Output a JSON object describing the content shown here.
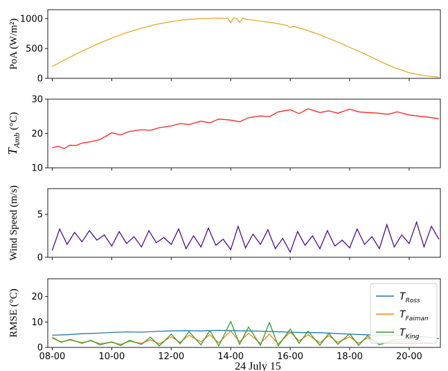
{
  "chart_data": [
    {
      "type": "line",
      "ylabel": "PoA (W/m²)",
      "ylim": [
        0,
        1150
      ],
      "yticks": [
        "0",
        "500",
        "1000"
      ],
      "ytick_values": [
        0,
        500,
        1000
      ],
      "xlim": [
        7.85,
        21.05
      ],
      "series": [
        {
          "color": "#e2a829",
          "x": [
            8.0,
            8.5,
            9.0,
            9.5,
            10.0,
            10.5,
            11.0,
            11.5,
            12.0,
            12.5,
            13.0,
            13.5,
            13.9,
            14.0,
            14.1,
            14.2,
            14.3,
            14.4,
            14.5,
            15.0,
            15.5,
            15.9,
            16.0,
            16.1,
            16.5,
            17.0,
            17.5,
            18.0,
            18.5,
            19.0,
            19.5,
            20.0,
            20.5,
            21.0
          ],
          "values": [
            200,
            330,
            455,
            570,
            675,
            765,
            840,
            905,
            950,
            985,
            1000,
            1010,
            1005,
            930,
            1015,
            1000,
            940,
            1010,
            990,
            960,
            925,
            885,
            850,
            875,
            815,
            730,
            630,
            520,
            410,
            290,
            180,
            95,
            45,
            20
          ]
        }
      ]
    },
    {
      "type": "line",
      "ylabel": "T_Amb (°C)",
      "ylabel_main": "T",
      "ylabel_sub": "Amb",
      "ylabel_tail": " (°C)",
      "ylim": [
        10,
        30
      ],
      "yticks": [
        "10",
        "20",
        "30"
      ],
      "ytick_values": [
        10,
        20,
        30
      ],
      "xlim": [
        7.85,
        21.05
      ],
      "series": [
        {
          "color": "#ff2020",
          "x": [
            8.0,
            8.2,
            8.4,
            8.6,
            8.8,
            9.0,
            9.3,
            9.6,
            10.0,
            10.3,
            10.6,
            11.0,
            11.3,
            11.6,
            12.0,
            12.3,
            12.6,
            13.0,
            13.3,
            13.6,
            14.0,
            14.3,
            14.6,
            15.0,
            15.3,
            15.6,
            16.0,
            16.3,
            16.6,
            17.0,
            17.3,
            17.6,
            18.0,
            18.3,
            18.6,
            19.0,
            19.3,
            19.6,
            20.0,
            20.3,
            20.6,
            21.0
          ],
          "values": [
            15.8,
            16.3,
            15.6,
            16.6,
            16.5,
            17.2,
            17.6,
            18.2,
            20.2,
            19.6,
            20.6,
            21.1,
            20.9,
            21.7,
            22.2,
            22.9,
            22.6,
            23.6,
            23.1,
            24.2,
            23.9,
            23.4,
            24.6,
            25.1,
            24.9,
            26.3,
            26.9,
            25.8,
            27.2,
            26.1,
            26.6,
            25.9,
            27.1,
            26.3,
            26.1,
            25.9,
            25.6,
            26.3,
            25.4,
            25.1,
            24.8,
            24.3
          ]
        }
      ]
    },
    {
      "type": "line",
      "ylabel": "Wind Speed (m/s)",
      "ylim": [
        0,
        8
      ],
      "yticks": [
        "0",
        "5"
      ],
      "ytick_values": [
        0,
        5
      ],
      "xlim": [
        7.85,
        21.05
      ],
      "series": [
        {
          "color": "#4b0c8f",
          "x": [
            8.0,
            8.25,
            8.5,
            8.75,
            9.0,
            9.25,
            9.5,
            9.75,
            10.0,
            10.25,
            10.5,
            10.75,
            11.0,
            11.25,
            11.5,
            11.75,
            12.0,
            12.25,
            12.5,
            12.75,
            13.0,
            13.25,
            13.5,
            13.75,
            14.0,
            14.25,
            14.5,
            14.75,
            15.0,
            15.25,
            15.5,
            15.75,
            16.0,
            16.25,
            16.5,
            16.75,
            17.0,
            17.25,
            17.5,
            17.75,
            18.0,
            18.25,
            18.5,
            18.75,
            19.0,
            19.25,
            19.5,
            19.75,
            20.0,
            20.25,
            20.5,
            20.75,
            21.0
          ],
          "values": [
            0.8,
            3.3,
            1.5,
            2.9,
            1.8,
            3.1,
            2.0,
            2.6,
            1.3,
            3.0,
            1.6,
            2.4,
            1.2,
            3.1,
            1.7,
            2.3,
            1.5,
            3.3,
            1.0,
            2.5,
            1.2,
            3.4,
            1.4,
            2.1,
            0.9,
            3.6,
            1.1,
            2.7,
            1.5,
            3.2,
            1.0,
            2.2,
            0.6,
            3.0,
            1.4,
            2.5,
            1.0,
            3.1,
            1.3,
            2.0,
            1.1,
            3.3,
            1.5,
            2.4,
            1.0,
            3.8,
            1.2,
            2.6,
            1.6,
            4.1,
            1.2,
            3.6,
            2.1
          ]
        }
      ]
    },
    {
      "type": "line",
      "ylabel": "RMSE (°C)",
      "ylim": [
        0,
        27
      ],
      "yticks": [
        "0",
        "10",
        "20"
      ],
      "ytick_values": [
        0,
        10,
        20
      ],
      "xlim": [
        7.85,
        21.05
      ],
      "xticks": [
        "08-00",
        "10-00",
        "12-00",
        "14-00",
        "16-00",
        "18-00",
        "20-00"
      ],
      "xtick_values": [
        8,
        10,
        12,
        14,
        16,
        18,
        20
      ],
      "xlabel": "24 July 15",
      "legend": "top-right",
      "series": [
        {
          "name": "T_Ross",
          "color": "#1f77b4",
          "x": [
            8.0,
            8.5,
            9.0,
            9.5,
            10.0,
            10.5,
            11.0,
            11.5,
            12.0,
            12.5,
            13.0,
            13.5,
            14.0,
            14.5,
            15.0,
            15.5,
            16.0,
            16.5,
            17.0,
            17.5,
            18.0,
            18.5,
            19.0,
            19.5,
            20.0,
            20.5,
            21.0
          ],
          "values": [
            4.8,
            5.0,
            5.4,
            5.6,
            5.9,
            6.1,
            6.0,
            6.3,
            6.5,
            6.6,
            6.5,
            6.7,
            6.6,
            6.5,
            6.4,
            6.2,
            6.0,
            5.8,
            5.8,
            5.5,
            5.2,
            5.0,
            4.8,
            4.6,
            4.5,
            4.2,
            3.5
          ]
        },
        {
          "name": "T_Faiman",
          "color": "#ff7f0e",
          "x": [
            8.0,
            8.3,
            8.6,
            9.0,
            9.3,
            9.6,
            10.0,
            10.3,
            10.6,
            11.0,
            11.3,
            11.6,
            12.0,
            12.3,
            12.6,
            13.0,
            13.3,
            13.6,
            14.0,
            14.3,
            14.6,
            15.0,
            15.3,
            15.6,
            16.0,
            16.3,
            16.6,
            17.0,
            17.3,
            17.6,
            18.0,
            18.3,
            18.6,
            19.0,
            19.5,
            20.0,
            20.5
          ],
          "values": [
            3.6,
            2.2,
            2.9,
            1.9,
            2.6,
            1.5,
            2.0,
            1.2,
            2.4,
            1.6,
            3.0,
            1.4,
            4.2,
            2.0,
            4.8,
            2.2,
            5.0,
            1.8,
            6.5,
            2.2,
            5.6,
            1.6,
            5.2,
            1.4,
            6.0,
            2.6,
            5.0,
            1.8,
            4.6,
            2.0,
            4.2,
            1.6,
            3.8,
            1.6,
            2.4,
            2.2,
            3.0
          ]
        },
        {
          "name": "T_King",
          "color": "#2ca02c",
          "x": [
            8.0,
            8.3,
            8.6,
            9.0,
            9.3,
            9.6,
            10.0,
            10.3,
            10.6,
            11.0,
            11.3,
            11.6,
            12.0,
            12.3,
            12.6,
            13.0,
            13.3,
            13.6,
            14.0,
            14.3,
            14.6,
            15.0,
            15.3,
            15.6,
            16.0,
            16.3,
            16.6,
            17.0,
            17.3,
            17.6,
            18.0,
            18.3,
            18.6,
            19.0,
            19.5,
            20.0,
            20.5
          ],
          "values": [
            4.0,
            2.0,
            3.2,
            1.6,
            2.8,
            1.0,
            2.2,
            0.8,
            2.8,
            1.2,
            4.0,
            0.6,
            5.2,
            1.4,
            6.2,
            1.0,
            6.6,
            0.6,
            10.2,
            1.2,
            8.0,
            0.8,
            9.8,
            0.6,
            7.2,
            1.6,
            6.4,
            0.8,
            5.6,
            1.2,
            5.4,
            0.8,
            4.6,
            1.0,
            3.0,
            3.4,
            4.4
          ]
        }
      ]
    }
  ]
}
